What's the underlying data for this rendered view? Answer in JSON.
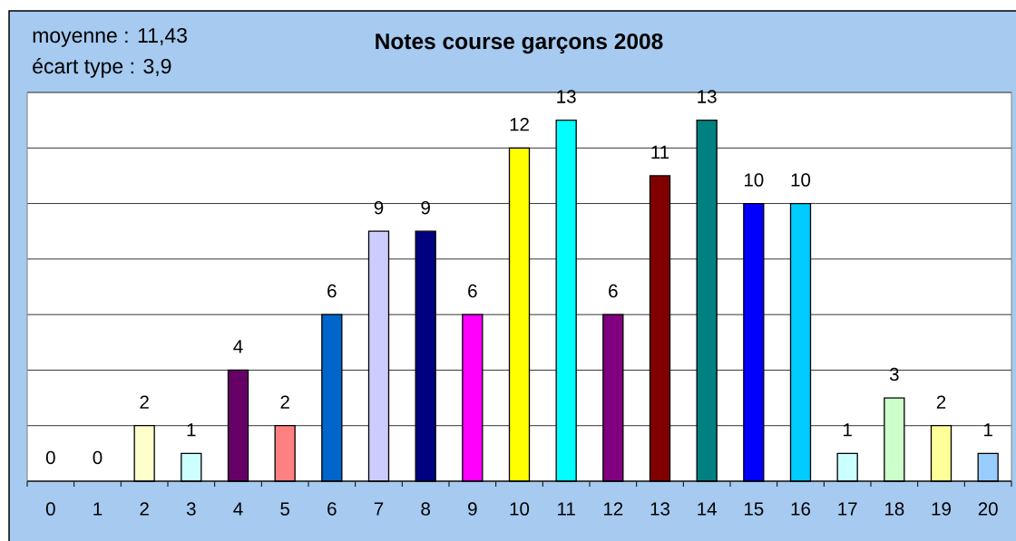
{
  "chart_data": {
    "type": "bar",
    "title": "Notes course garçons 2008",
    "annotations": [
      "moyenne : 11,43",
      "écart type : 3,9"
    ],
    "categories": [
      "0",
      "1",
      "2",
      "3",
      "4",
      "5",
      "6",
      "7",
      "8",
      "9",
      "10",
      "11",
      "12",
      "13",
      "14",
      "15",
      "16",
      "17",
      "18",
      "19",
      "20"
    ],
    "values": [
      0,
      0,
      2,
      1,
      4,
      2,
      6,
      9,
      9,
      6,
      12,
      13,
      6,
      11,
      13,
      10,
      10,
      1,
      3,
      2,
      1
    ],
    "colors": [
      null,
      null,
      "#ffffcc",
      "#ccffff",
      "#660066",
      "#ff8080",
      "#0066cc",
      "#ccccff",
      "#000080",
      "#ff00ff",
      "#ffff00",
      "#00ffff",
      "#800080",
      "#800000",
      "#008080",
      "#0000ff",
      "#00ccff",
      "#ccffff",
      "#ccffcc",
      "#ffff99",
      "#99ccff"
    ],
    "data_labels": true,
    "ylim": [
      0,
      14
    ],
    "yticks": [
      {
        "value": 0,
        "label": null
      },
      {
        "value": 2,
        "label": null
      },
      {
        "value": 4,
        "label": null
      },
      {
        "value": 6,
        "label": null
      },
      {
        "value": 8,
        "label": null
      },
      {
        "value": 10,
        "label": null
      },
      {
        "value": 12,
        "label": null
      },
      {
        "value": 14,
        "label": null
      }
    ],
    "grid": "y",
    "tick_labels": "x"
  }
}
